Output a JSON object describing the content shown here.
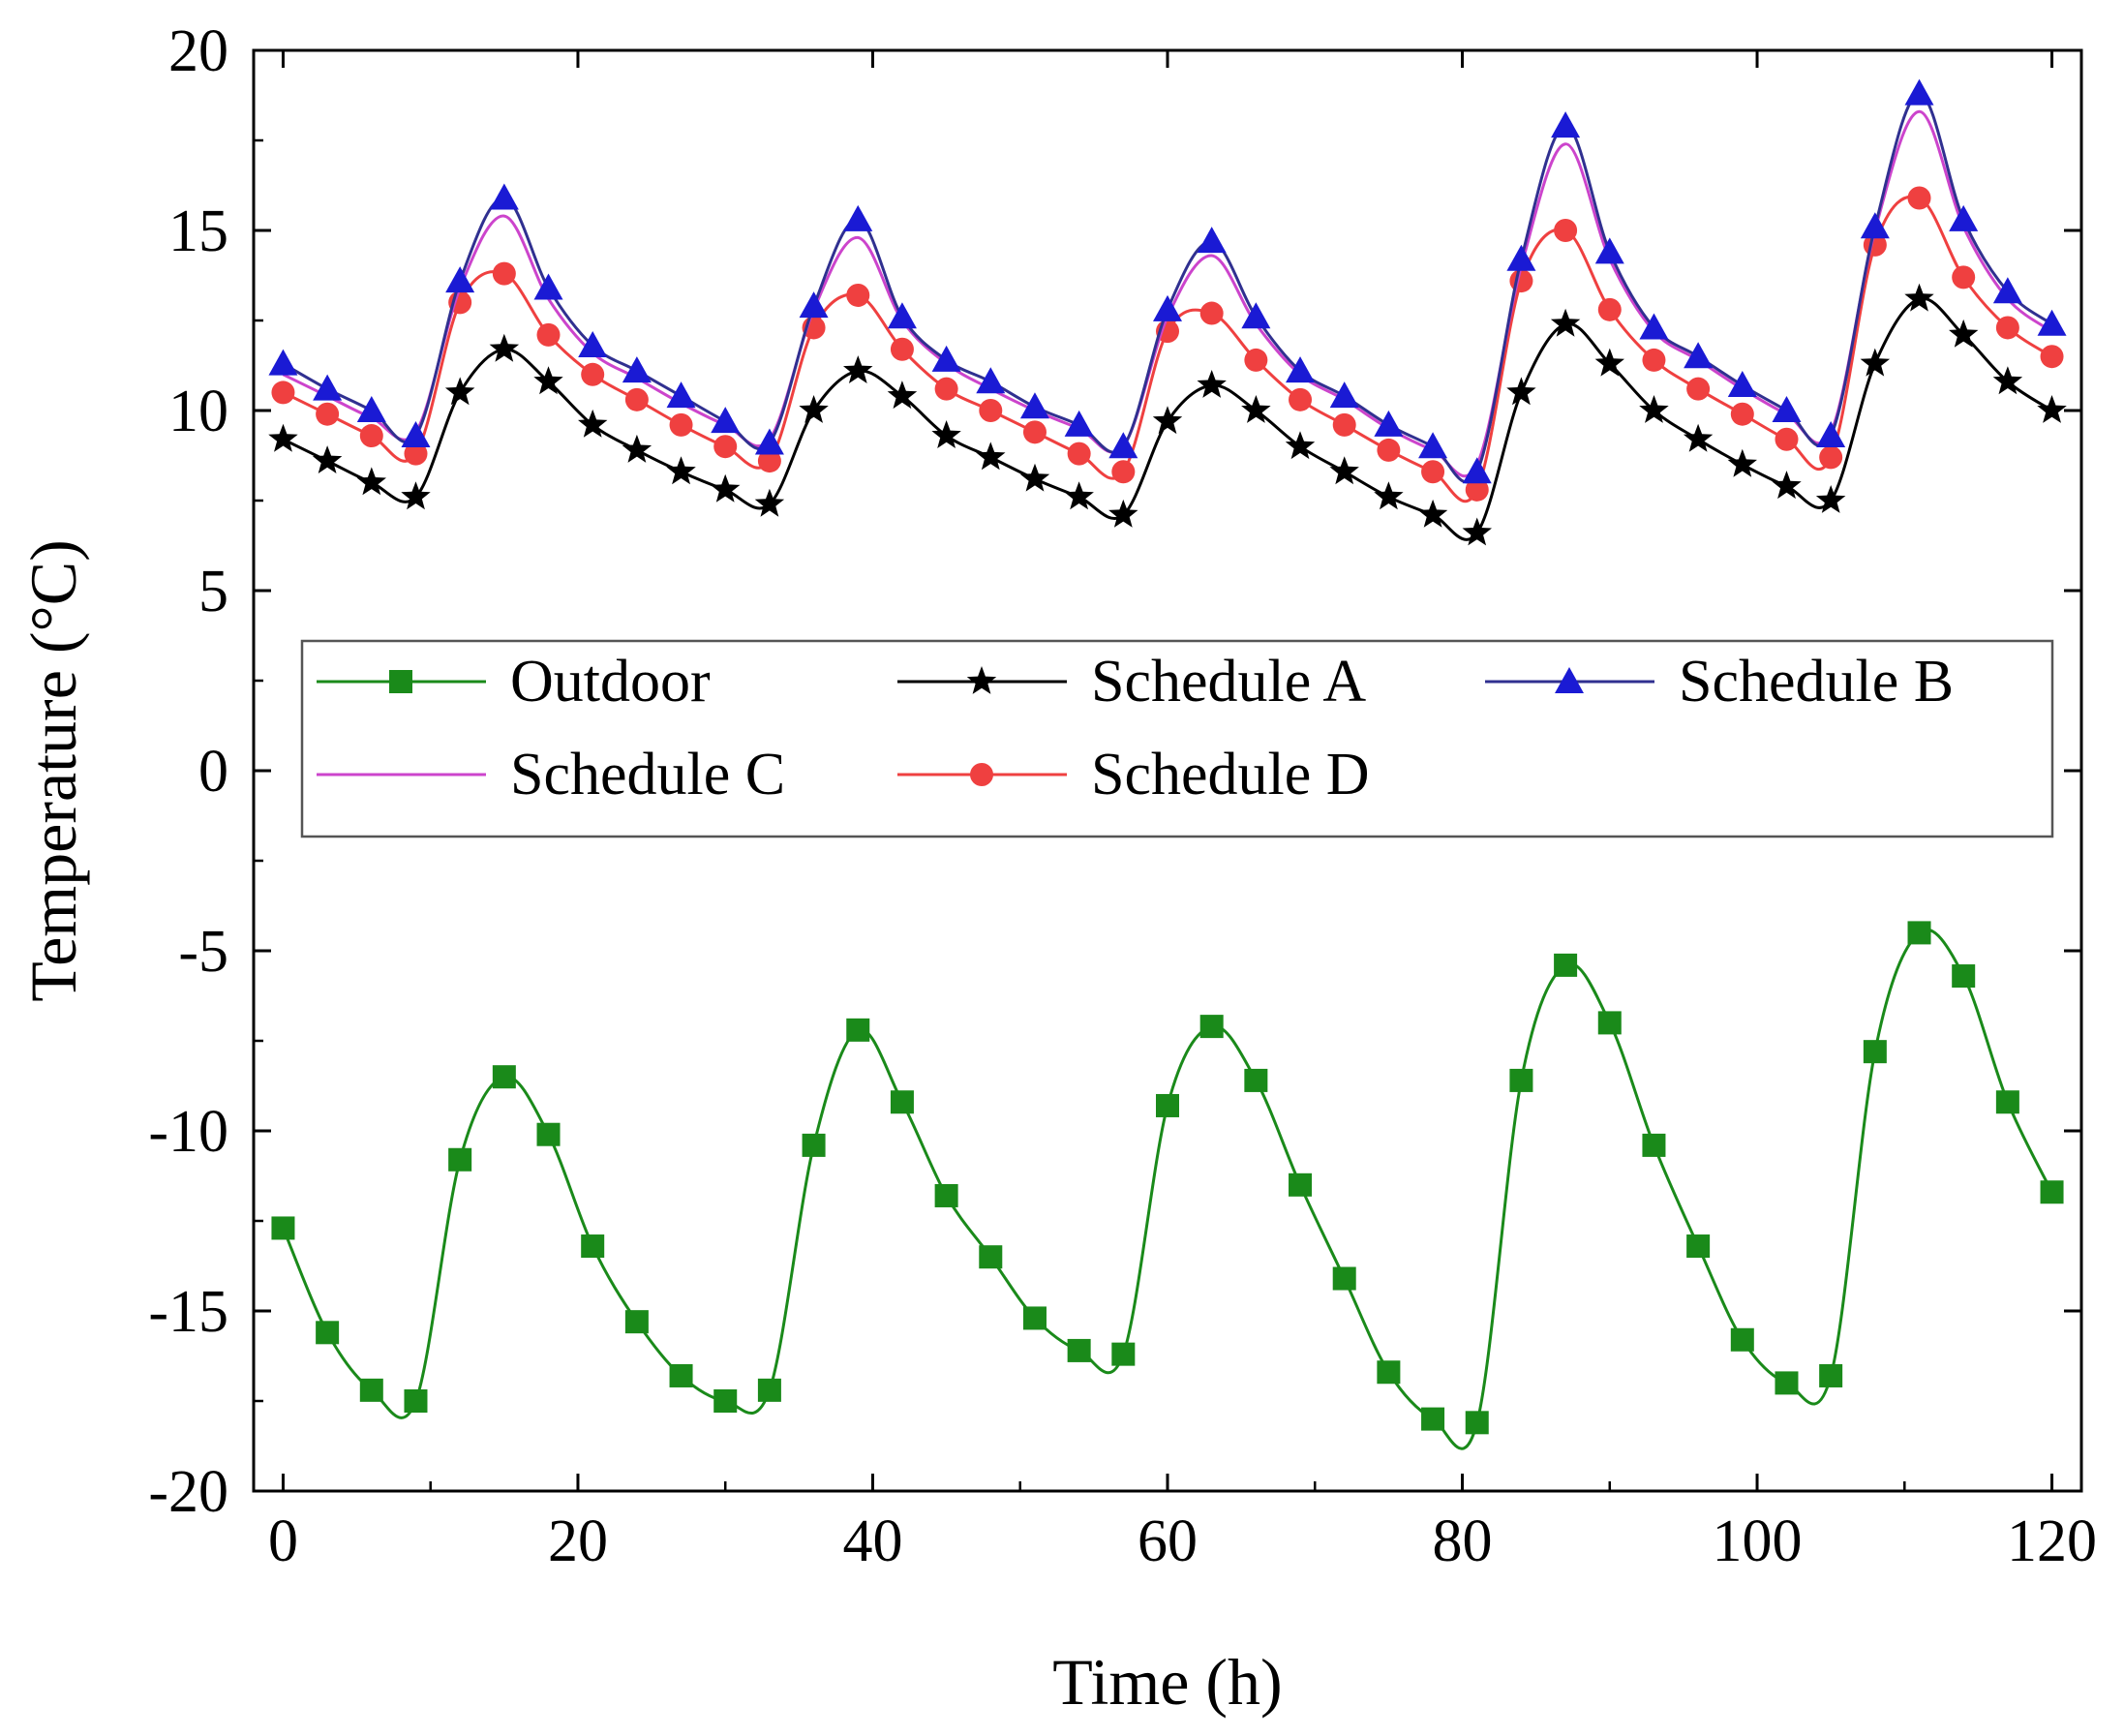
{
  "chart_data": {
    "type": "line",
    "title": "",
    "xlabel": "Time (h)",
    "ylabel": "Temperature (°C)",
    "xlim": [
      -2,
      122
    ],
    "ylim": [
      -20,
      20
    ],
    "xticks": [
      0,
      20,
      40,
      60,
      80,
      100,
      120
    ],
    "yticks": [
      -20,
      -15,
      -10,
      -5,
      0,
      5,
      10,
      15,
      20
    ],
    "xtick_labels": [
      "0",
      "20",
      "40",
      "60",
      "80",
      "100",
      "120"
    ],
    "ytick_labels": [
      "-20",
      "-15",
      "-10",
      "-5",
      "0",
      "5",
      "10",
      "15",
      "20"
    ],
    "grid": false,
    "legend_position": "upper-middle",
    "x": [
      0,
      3,
      6,
      9,
      12,
      15,
      18,
      21,
      24,
      27,
      30,
      33,
      36,
      39,
      42,
      45,
      48,
      51,
      54,
      57,
      60,
      63,
      66,
      69,
      72,
      75,
      78,
      81,
      84,
      87,
      90,
      93,
      96,
      99,
      102,
      105,
      108,
      111,
      114,
      117,
      120
    ],
    "series": [
      {
        "name": "Outdoor",
        "color": "#1a8a1a",
        "marker": "square",
        "values": [
          -12.7,
          -15.6,
          -17.2,
          -17.5,
          -10.8,
          -8.5,
          -10.1,
          -13.2,
          -15.3,
          -16.8,
          -17.5,
          -17.2,
          -10.4,
          -7.2,
          -9.2,
          -11.8,
          -13.5,
          -15.2,
          -16.1,
          -16.2,
          -9.3,
          -7.1,
          -8.6,
          -11.5,
          -14.1,
          -16.7,
          -18.0,
          -18.1,
          -8.6,
          -5.4,
          -7.0,
          -10.4,
          -13.2,
          -15.8,
          -17.0,
          -16.8,
          -7.8,
          -4.5,
          -5.7,
          -9.2,
          -11.7
        ]
      },
      {
        "name": "Schedule A",
        "color": "#000000",
        "marker": "star",
        "values": [
          9.2,
          8.6,
          8.0,
          7.6,
          10.5,
          11.7,
          10.8,
          9.6,
          8.9,
          8.3,
          7.8,
          7.4,
          10.0,
          11.1,
          10.4,
          9.3,
          8.7,
          8.1,
          7.6,
          7.1,
          9.7,
          10.7,
          10.0,
          9.0,
          8.3,
          7.6,
          7.1,
          6.6,
          10.5,
          12.4,
          11.3,
          10.0,
          9.2,
          8.5,
          7.9,
          7.5,
          11.3,
          13.1,
          12.1,
          10.8,
          10.0
        ]
      },
      {
        "name": "Schedule B",
        "color": "#1a1ad4",
        "line_color": "#303090",
        "marker": "triangle",
        "values": [
          11.3,
          10.6,
          10.0,
          9.3,
          13.6,
          15.9,
          13.4,
          11.8,
          11.1,
          10.4,
          9.7,
          9.1,
          12.9,
          15.3,
          12.6,
          11.4,
          10.8,
          10.1,
          9.6,
          9.0,
          12.8,
          14.7,
          12.6,
          11.1,
          10.4,
          9.6,
          9.0,
          8.3,
          14.2,
          17.9,
          14.4,
          12.3,
          11.5,
          10.7,
          10.0,
          9.3,
          15.1,
          18.8,
          15.3,
          13.3,
          12.4
        ]
      },
      {
        "name": "Schedule C",
        "color": "#cc44cc",
        "marker": "none",
        "values": [
          11.0,
          10.4,
          9.8,
          9.4,
          13.4,
          15.4,
          13.1,
          11.6,
          10.9,
          10.2,
          9.6,
          9.2,
          12.8,
          14.8,
          12.5,
          11.3,
          10.6,
          10.0,
          9.5,
          9.0,
          12.6,
          14.3,
          12.4,
          11.0,
          10.3,
          9.5,
          8.9,
          8.5,
          14.0,
          17.4,
          14.2,
          12.2,
          11.4,
          10.6,
          9.9,
          9.4,
          15.0,
          18.3,
          15.1,
          13.1,
          12.2
        ]
      },
      {
        "name": "Schedule D",
        "color": "#ef4040",
        "marker": "circle",
        "values": [
          10.5,
          9.9,
          9.3,
          8.8,
          13.0,
          13.8,
          12.1,
          11.0,
          10.3,
          9.6,
          9.0,
          8.6,
          12.3,
          13.2,
          11.7,
          10.6,
          10.0,
          9.4,
          8.8,
          8.3,
          12.2,
          12.7,
          11.4,
          10.3,
          9.6,
          8.9,
          8.3,
          7.8,
          13.6,
          15.0,
          12.8,
          11.4,
          10.6,
          9.9,
          9.2,
          8.7,
          14.6,
          15.9,
          13.7,
          12.3,
          11.5
        ]
      }
    ],
    "legend_order": [
      "Outdoor",
      "Schedule A",
      "Schedule B",
      "Schedule C",
      "Schedule D"
    ]
  }
}
